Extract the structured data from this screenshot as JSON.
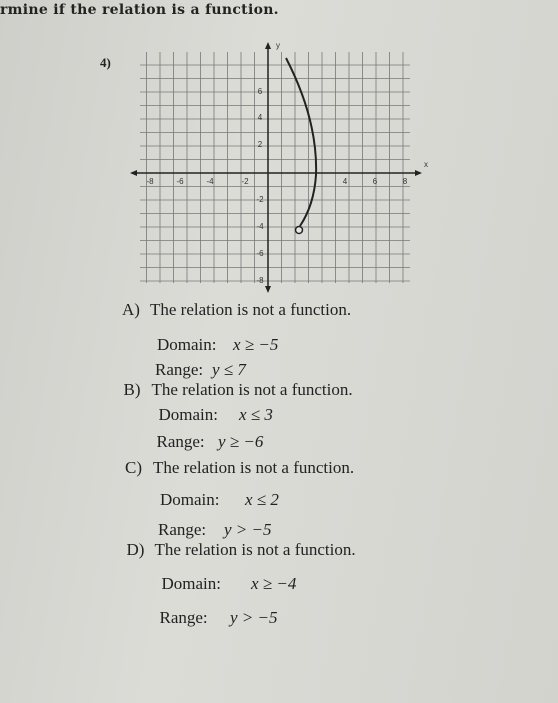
{
  "header": {
    "title": "rmine if the relation is a function.",
    "number": "4)"
  },
  "graph": {
    "x_axis_label": "x",
    "y_axis_label": "y",
    "x_tick_labels": [
      "-8",
      "-6",
      "-4",
      "-2",
      "4",
      "6",
      "8"
    ],
    "y_tick_labels": [
      "6",
      "4",
      "2",
      "-2",
      "-4",
      "-6",
      "-8"
    ]
  },
  "options": [
    {
      "letter": "A)",
      "statement": "The relation is not a function.",
      "domain_label": "Domain:",
      "domain": "x ≥ −5",
      "range_label": "Range:",
      "range": "y ≤ 7"
    },
    {
      "letter": "B)",
      "statement": "The relation is not a function.",
      "domain_label": "Domain:",
      "domain": "x ≤ 3",
      "range_label": "Range:",
      "range": "y ≥ −6"
    },
    {
      "letter": "C)",
      "statement": "The relation is not a function.",
      "domain_label": "Domain:",
      "domain": "x ≤ 2",
      "range_label": "Range:",
      "range": "y > −5"
    },
    {
      "letter": "D)",
      "statement": "The relation is not a function.",
      "domain_label": "Domain:",
      "domain": "x ≥ −4",
      "range_label": "Range:",
      "range": "y > −5"
    }
  ]
}
